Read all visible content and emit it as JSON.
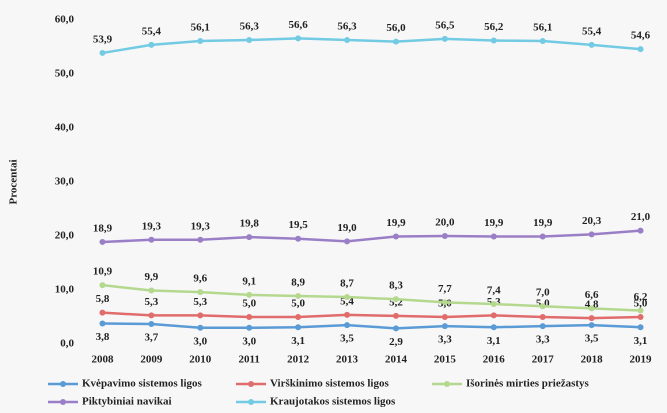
{
  "chart_data": {
    "type": "line",
    "y_label": "Procentai",
    "categories": [
      "2008",
      "2009",
      "2010",
      "2011",
      "2012",
      "2013",
      "2014",
      "2015",
      "2016",
      "2017",
      "2018",
      "2019"
    ],
    "series": [
      {
        "name": "Kvėpavimo sistemos ligos",
        "color": "#5b9bd5",
        "values": [
          3.8,
          3.7,
          3.0,
          3.0,
          3.1,
          3.5,
          2.9,
          3.3,
          3.1,
          3.3,
          3.5,
          3.1
        ],
        "value_labels": [
          "3,8",
          "3,7",
          "3,0",
          "3,0",
          "3,1",
          "3,5",
          "2,9",
          "3,3",
          "3,1",
          "3,3",
          "3,5",
          "3,1"
        ]
      },
      {
        "name": "Virškinimo sistemos ligos",
        "color": "#e06c6c",
        "values": [
          5.8,
          5.3,
          5.3,
          5.0,
          5.0,
          5.4,
          5.2,
          5.0,
          5.3,
          5.0,
          4.8,
          5.0
        ],
        "value_labels": [
          "5,8",
          "5,3",
          "5,3",
          "5,0",
          "5,0",
          "5,4",
          "5,2",
          "5,0",
          "5,3",
          "5,0",
          "4,8",
          "5,0"
        ]
      },
      {
        "name": "Išorinės mirties priežastys",
        "color": "#b5d88f",
        "values": [
          10.9,
          9.9,
          9.6,
          9.1,
          8.9,
          8.7,
          8.3,
          7.7,
          7.4,
          7.0,
          6.6,
          6.2
        ],
        "value_labels": [
          "10,9",
          "9,9",
          "9,6",
          "9,1",
          "8,9",
          "8,7",
          "8,3",
          "7,7",
          "7,4",
          "7,0",
          "6,6",
          "6,2"
        ]
      },
      {
        "name": "Piktybiniai navikai",
        "color": "#9b7fc6",
        "values": [
          18.9,
          19.3,
          19.3,
          19.8,
          19.5,
          19.0,
          19.9,
          20.0,
          19.9,
          19.9,
          20.3,
          21.0
        ],
        "value_labels": [
          "18,9",
          "19,3",
          "19,3",
          "19,8",
          "19,5",
          "19,0",
          "19,9",
          "20,0",
          "19,9",
          "19,9",
          "20,3",
          "21,0"
        ]
      },
      {
        "name": "Kraujotakos sistemos ligos",
        "color": "#72cbe3",
        "values": [
          53.9,
          55.4,
          56.1,
          56.3,
          56.6,
          56.3,
          56.0,
          56.5,
          56.2,
          56.1,
          55.4,
          54.6
        ],
        "value_labels": [
          "53,9",
          "55,4",
          "56,1",
          "56,3",
          "56,6",
          "56,3",
          "56,0",
          "56,5",
          "56,2",
          "56,1",
          "55,4",
          "54,6"
        ]
      }
    ],
    "ylim": [
      0,
      60
    ],
    "yticks": [
      {
        "value": 0,
        "label": "0,0"
      },
      {
        "value": 10,
        "label": "10,0"
      },
      {
        "value": 20,
        "label": "20,0"
      },
      {
        "value": 30,
        "label": "30,0"
      },
      {
        "value": 40,
        "label": "40,0"
      },
      {
        "value": 50,
        "label": "50,0"
      },
      {
        "value": 60,
        "label": "60,0"
      }
    ],
    "grid": false
  }
}
